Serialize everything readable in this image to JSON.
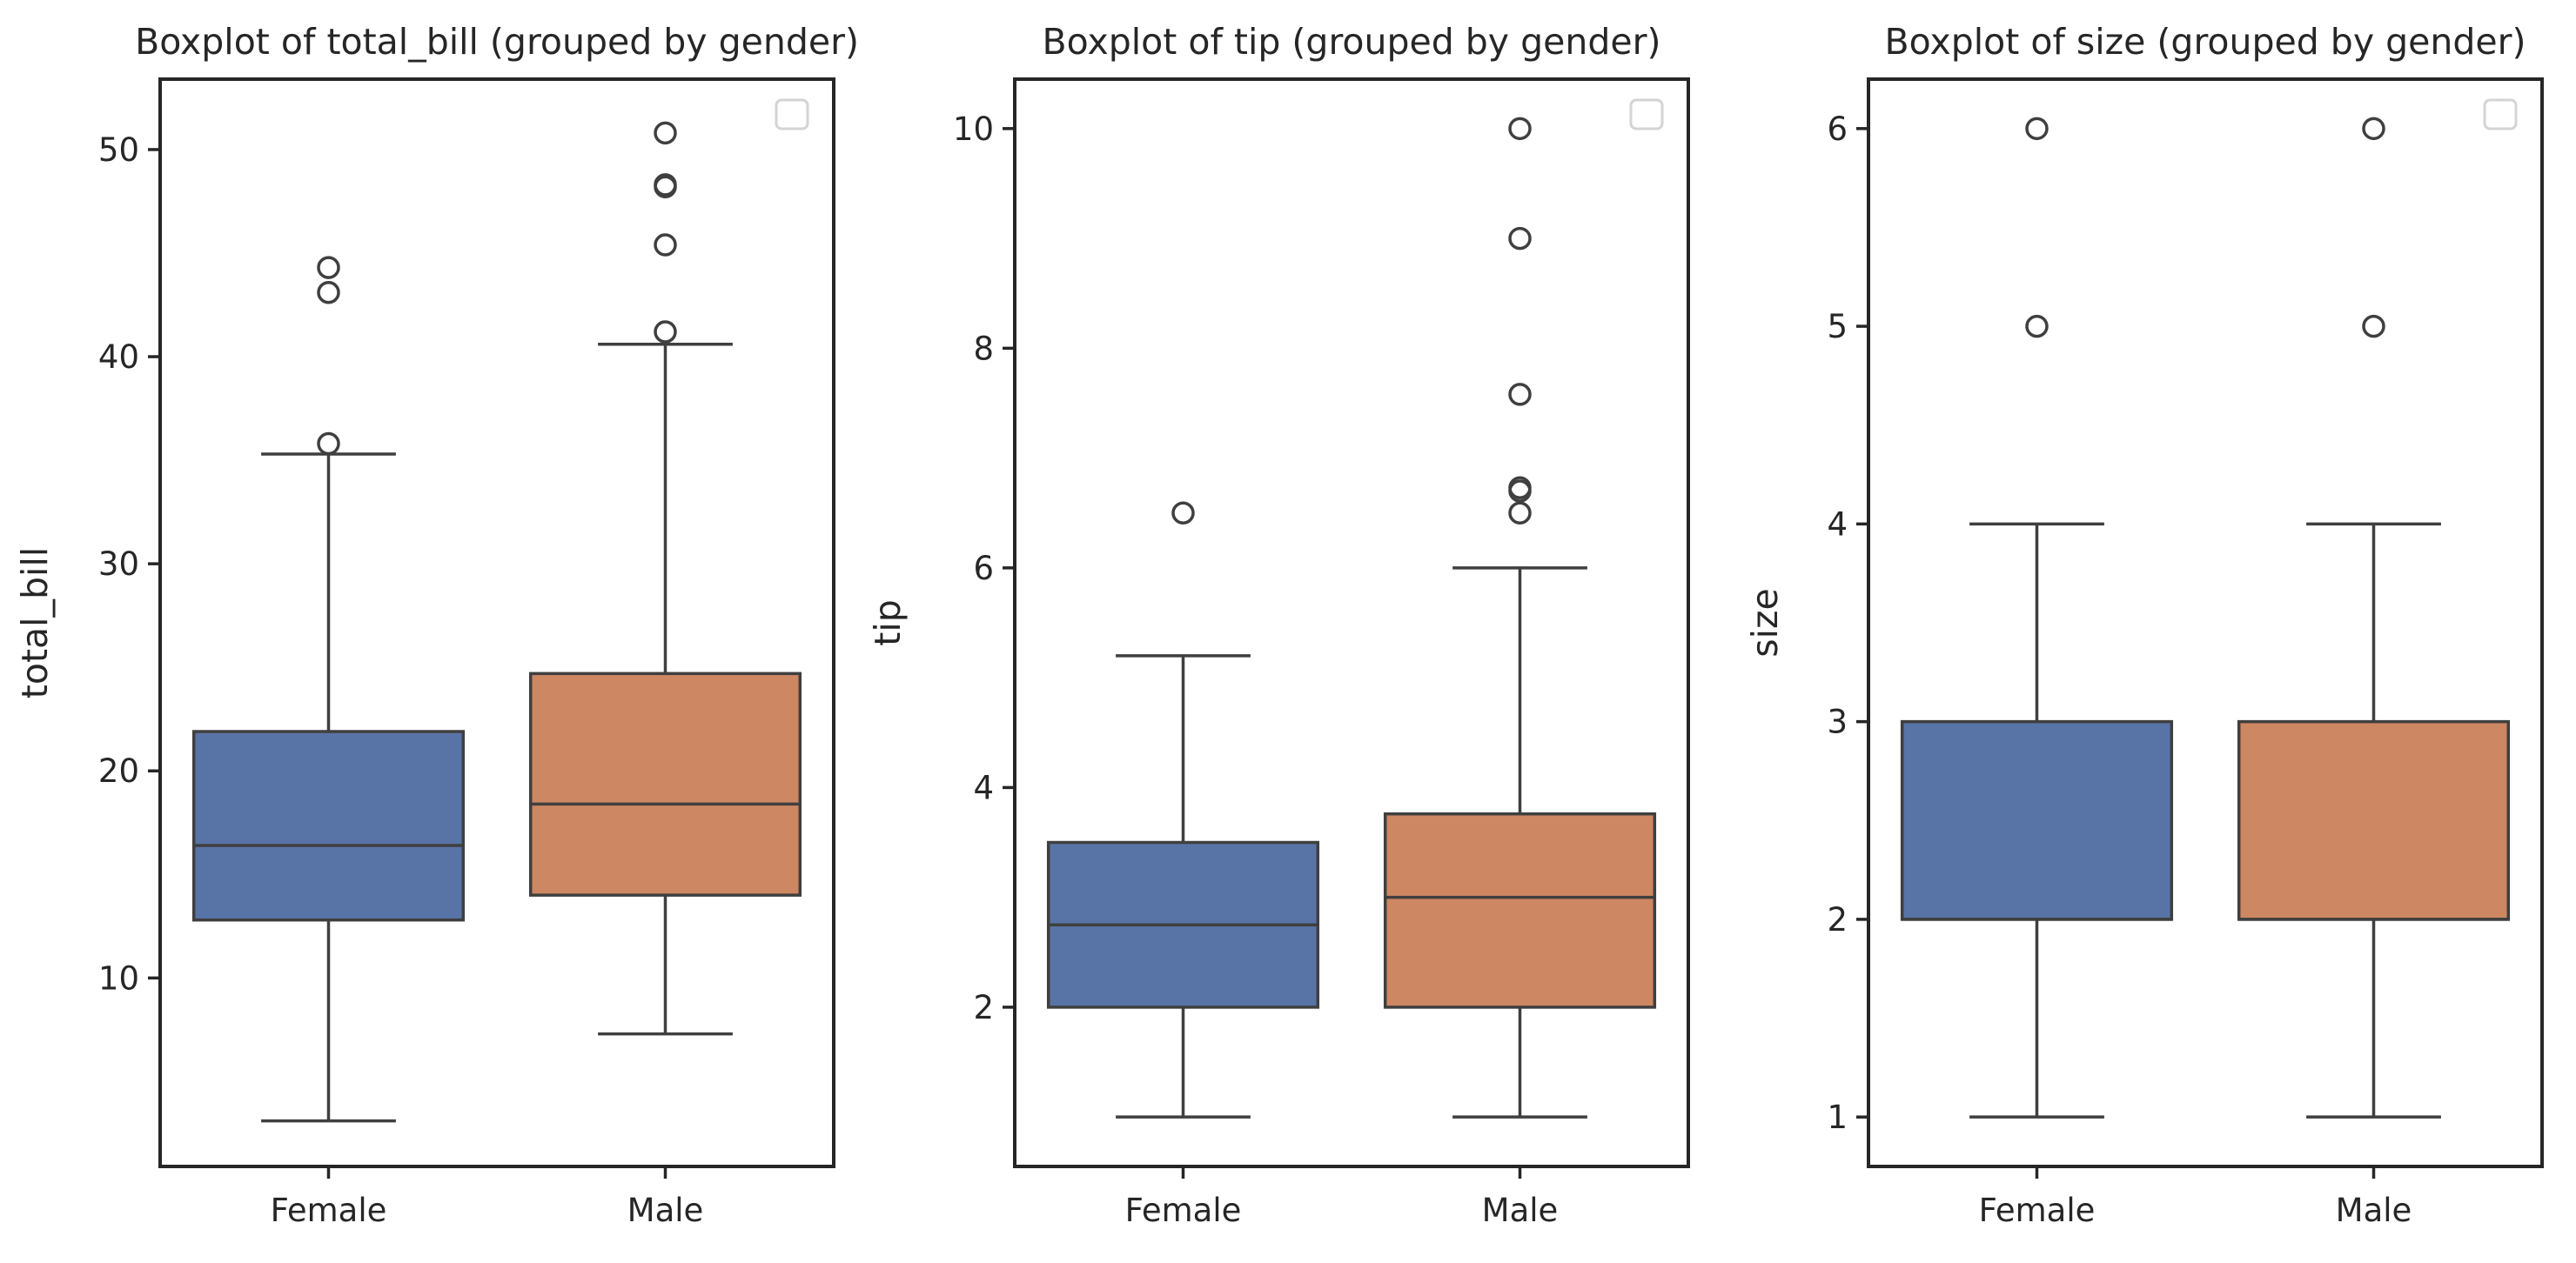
{
  "chart_data": [
    {
      "type": "box",
      "title": "Boxplot of total_bill (grouped by gender)",
      "xlabel": "",
      "ylabel": "total_bill",
      "categories": [
        "Female",
        "Male"
      ],
      "colors": [
        "#5874a6",
        "#cd8762"
      ],
      "ylim": [
        0.9,
        53.4
      ],
      "yticks": [
        10,
        20,
        30,
        40,
        50
      ],
      "ytick_labels": [
        "10",
        "20",
        "30",
        "40",
        "50"
      ],
      "legend": "top-right (empty)",
      "grid": false,
      "boxes": [
        {
          "category": "Female",
          "whislo": 3.1,
          "q1": 12.8,
          "median": 16.4,
          "q3": 21.9,
          "whishi": 35.3,
          "fliers": [
            35.8,
            43.1,
            44.3
          ]
        },
        {
          "category": "Male",
          "whislo": 7.3,
          "q1": 14.0,
          "median": 18.4,
          "q3": 24.7,
          "whishi": 40.6,
          "fliers": [
            41.2,
            45.4,
            48.2,
            48.3,
            50.8
          ]
        }
      ]
    },
    {
      "type": "box",
      "title": "Boxplot of tip (grouped by gender)",
      "xlabel": "",
      "ylabel": "tip",
      "categories": [
        "Female",
        "Male"
      ],
      "colors": [
        "#5874a6",
        "#cd8762"
      ],
      "ylim": [
        0.55,
        10.45
      ],
      "yticks": [
        2,
        4,
        6,
        8,
        10
      ],
      "ytick_labels": [
        "2",
        "4",
        "6",
        "8",
        "10"
      ],
      "legend": "top-right (empty)",
      "grid": false,
      "boxes": [
        {
          "category": "Female",
          "whislo": 1.0,
          "q1": 2.0,
          "median": 2.75,
          "q3": 3.5,
          "whishi": 5.2,
          "fliers": [
            6.5
          ]
        },
        {
          "category": "Male",
          "whislo": 1.0,
          "q1": 2.0,
          "median": 3.0,
          "q3": 3.76,
          "whishi": 6.0,
          "fliers": [
            6.5,
            6.7,
            6.73,
            7.58,
            9.0,
            10.0
          ]
        }
      ]
    },
    {
      "type": "box",
      "title": "Boxplot of size (grouped by gender)",
      "xlabel": "",
      "ylabel": "size",
      "categories": [
        "Female",
        "Male"
      ],
      "colors": [
        "#5874a6",
        "#cd8762"
      ],
      "ylim": [
        0.75,
        6.25
      ],
      "yticks": [
        1,
        2,
        3,
        4,
        5,
        6
      ],
      "ytick_labels": [
        "1",
        "2",
        "3",
        "4",
        "5",
        "6"
      ],
      "legend": "top-right (empty)",
      "grid": false,
      "boxes": [
        {
          "category": "Female",
          "whislo": 1,
          "q1": 2,
          "median": 2,
          "q3": 3,
          "whishi": 4,
          "fliers": [
            5,
            6
          ]
        },
        {
          "category": "Male",
          "whislo": 1,
          "q1": 2,
          "median": 2,
          "q3": 3,
          "whishi": 4,
          "fliers": [
            5,
            6
          ]
        }
      ]
    }
  ]
}
